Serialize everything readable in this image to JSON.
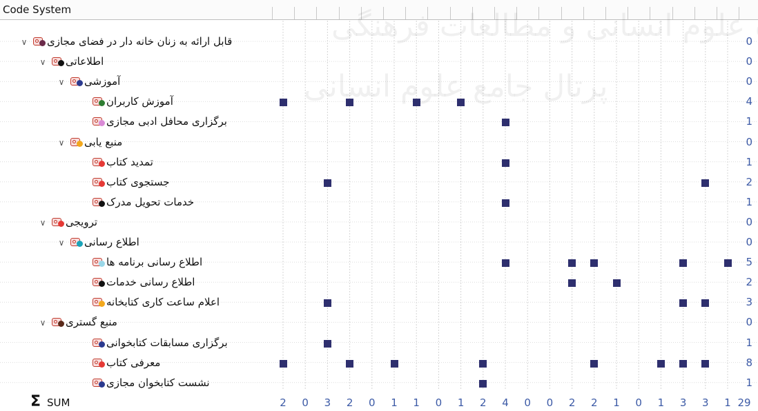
{
  "header": {
    "title": "Code System"
  },
  "rows": [
    {
      "label": "قابل ارائه به زنان خانه دار در فضای مجازی",
      "count": "0",
      "level": 0,
      "expander": "∨",
      "dot": "#6a2a4a",
      "marks": []
    },
    {
      "label": "اطلاعاتی",
      "count": "0",
      "level": 1,
      "expander": "∨",
      "dot": "#111111",
      "marks": []
    },
    {
      "label": "آموزشی",
      "count": "0",
      "level": 2,
      "expander": "∨",
      "dot": "#2b3a8f",
      "marks": []
    },
    {
      "label": "آموزش کاربران",
      "count": "4",
      "level": 3,
      "expander": "",
      "dot": "#2e7d32",
      "marks": [
        0,
        3,
        6,
        8
      ]
    },
    {
      "label": "برگزاری محافل ادبی مجازی",
      "count": "1",
      "level": 3,
      "expander": "",
      "dot": "#d98ad6",
      "marks": [
        10
      ]
    },
    {
      "label": "منبع یابی",
      "count": "0",
      "level": 2,
      "expander": "∨",
      "dot": "#f2a81d",
      "marks": []
    },
    {
      "label": "تمدید کتاب",
      "count": "1",
      "level": 3,
      "expander": "",
      "dot": "#e53935",
      "marks": [
        10
      ]
    },
    {
      "label": "جستجوی کتاب",
      "count": "2",
      "level": 3,
      "expander": "",
      "dot": "#e53935",
      "marks": [
        2,
        19
      ]
    },
    {
      "label": "خدمات تحویل مدرک",
      "count": "1",
      "level": 3,
      "expander": "",
      "dot": "#111111",
      "marks": [
        10
      ]
    },
    {
      "label": "ترویجی",
      "count": "0",
      "level": 1,
      "expander": "∨",
      "dot": "#e53935",
      "marks": []
    },
    {
      "label": "اطلاع رسانی",
      "count": "0",
      "level": 2,
      "expander": "∨",
      "dot": "#1aa3b8",
      "marks": []
    },
    {
      "label": "اطلاع رسانی برنامه ها",
      "count": "5",
      "level": 3,
      "expander": "",
      "dot": "#9ad7e8",
      "marks": [
        10,
        13,
        14,
        18,
        20
      ]
    },
    {
      "label": "اطلاع رسانی خدمات",
      "count": "2",
      "level": 3,
      "expander": "",
      "dot": "#111111",
      "marks": [
        13,
        15
      ]
    },
    {
      "label": "اعلام ساعت کاری کتابخانه",
      "count": "3",
      "level": 3,
      "expander": "",
      "dot": "#f2a81d",
      "marks": [
        2,
        18,
        19
      ]
    },
    {
      "label": "منبع گستری",
      "count": "0",
      "level": 1,
      "expander": "∨",
      "dot": "#5a2a1a",
      "marks": []
    },
    {
      "label": "برگزاری مسابقات کتابخوانی",
      "count": "1",
      "level": 3,
      "expander": "",
      "dot": "#2b3a8f",
      "marks": [
        2
      ]
    },
    {
      "label": "معرفی کتاب",
      "count": "8",
      "level": 3,
      "expander": "",
      "dot": "#e53935",
      "marks": [
        0,
        3,
        5,
        9,
        14,
        17,
        18,
        19
      ]
    },
    {
      "label": "نشست کتابخوان مجازی",
      "count": "1",
      "level": 3,
      "expander": "",
      "dot": "#2b3a8f",
      "marks": [
        9
      ]
    }
  ],
  "sum": {
    "label": "SUM",
    "values": [
      "2",
      "0",
      "3",
      "2",
      "0",
      "1",
      "1",
      "0",
      "1",
      "2",
      "4",
      "0",
      "0",
      "2",
      "2",
      "1",
      "0",
      "1",
      "3",
      "3",
      "1"
    ],
    "total": "29"
  },
  "watermark": {
    "line1": "پژوهشگاه علوم انسانی و مطالعات فرهنگی",
    "line2": "پرتال جامع علوم انسانی"
  }
}
